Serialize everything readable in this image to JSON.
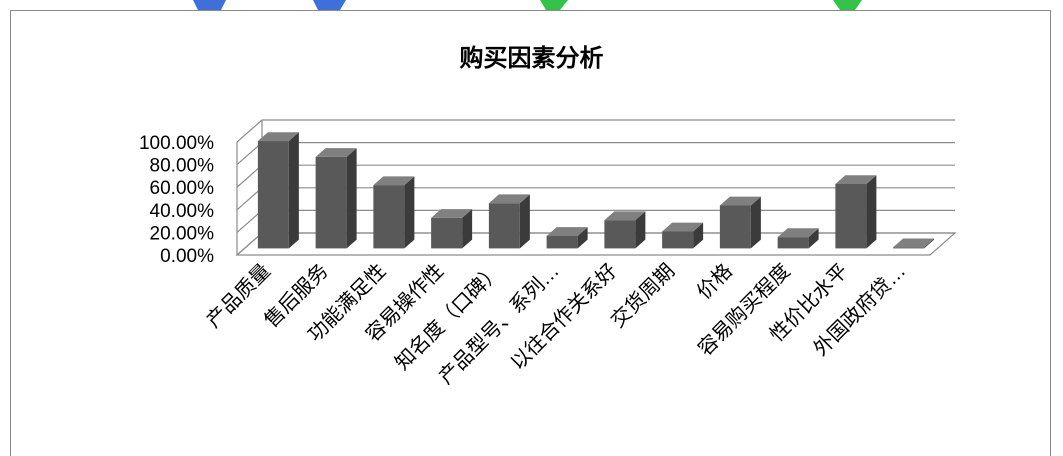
{
  "chart_data": {
    "type": "bar",
    "style": "3d-column",
    "title": "购买因素分析",
    "categories": [
      "产品质量",
      "售后服务",
      "功能满足性",
      "容易操作性",
      "知名度（口碑）",
      "产品型号、系列…",
      "以往合作关系好",
      "交货周期",
      "价格",
      "容易购买程度",
      "性价比水平",
      "外国政府贷…"
    ],
    "values": [
      95,
      81,
      56,
      27,
      40,
      11,
      25,
      15,
      38,
      10,
      57,
      1
    ],
    "y_unit": "percent",
    "ylim": [
      0,
      100
    ],
    "yticks": [
      0,
      20,
      40,
      60,
      80,
      100
    ],
    "ytick_labels": [
      "0.00%",
      "20.00%",
      "40.00%",
      "60.00%",
      "80.00%",
      "100.00%"
    ],
    "xlabel": "",
    "ylabel": "",
    "grid": true,
    "legend": "none",
    "colors": {
      "bar_front": "#595959",
      "bar_top": "#808080",
      "bar_side": "#3b3b3b",
      "grid": "#8c8c8c",
      "decor_blue": "#3f6fd8",
      "decor_green": "#35c24a"
    }
  }
}
